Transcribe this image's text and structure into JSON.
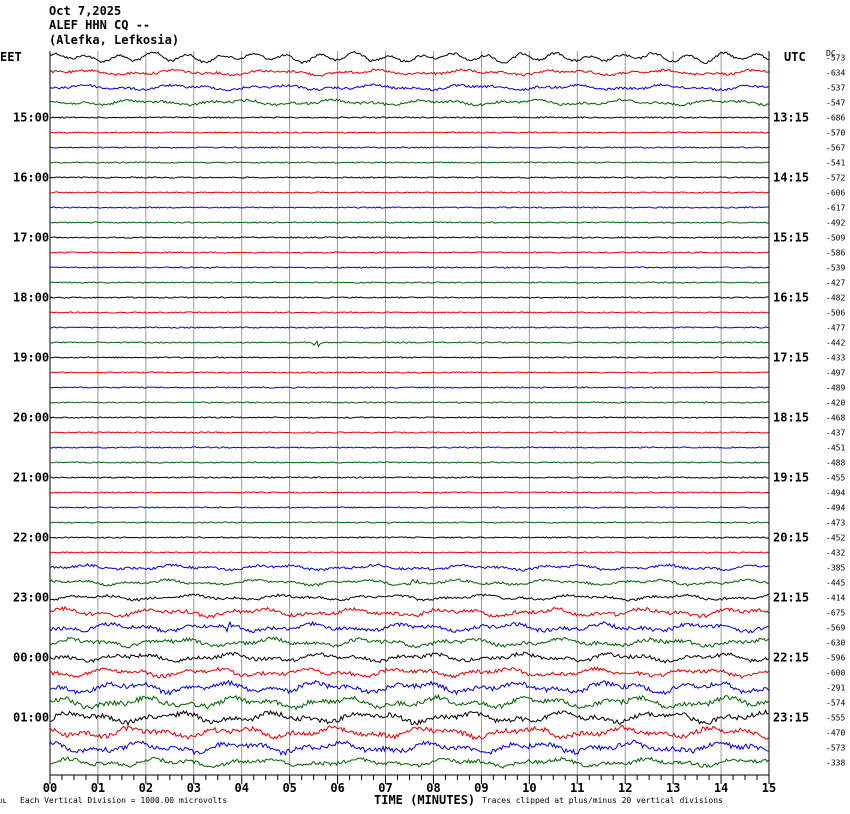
{
  "header": {
    "date": "Oct 7,2025",
    "station": "ALEF HHN CQ --",
    "location": "(Alefka, Lefkosia)"
  },
  "left_timezone": "EET",
  "right_timezone": "UTC",
  "dc_label": "DC",
  "footer": {
    "corner_mark": "ᴊʟ",
    "scale_note": "Each Vertical Division = 1000.00 microvolts",
    "clip_note": "Traces clipped at plus/minus 20 vertical divisions"
  },
  "colors": {
    "black": "#000000",
    "red": "#e00000",
    "blue": "#0000e0",
    "green": "#006400",
    "grid": "#808080"
  },
  "chart_data": {
    "type": "line",
    "xlabel": "TIME (MINUTES)",
    "xlim": [
      0,
      15
    ],
    "x_ticks": [
      "00",
      "01",
      "02",
      "03",
      "04",
      "05",
      "06",
      "07",
      "08",
      "09",
      "10",
      "11",
      "12",
      "13",
      "14",
      "15"
    ],
    "trace_colors": [
      "black",
      "red",
      "blue",
      "green"
    ],
    "left_hour_labels": [
      "15:00",
      "16:00",
      "17:00",
      "18:00",
      "19:00",
      "20:00",
      "21:00",
      "22:00",
      "23:00",
      "00:00",
      "01:00"
    ],
    "right_hour_labels": [
      "13:15",
      "14:15",
      "15:15",
      "16:15",
      "17:15",
      "18:15",
      "19:15",
      "20:15",
      "21:15",
      "22:15",
      "23:15"
    ],
    "trace_offsets": [
      -573,
      -634,
      -537,
      -547,
      -686,
      -570,
      -567,
      -541,
      -572,
      -606,
      -617,
      -492,
      -509,
      -586,
      -539,
      -427,
      -482,
      -506,
      -477,
      -442,
      -433,
      -497,
      -489,
      -420,
      -468,
      -437,
      -451,
      -488,
      -455,
      -494,
      -494,
      -473,
      -452,
      -432,
      -385,
      -445,
      -414,
      -675,
      -569,
      -630,
      -596,
      -600,
      -291,
      -574,
      -555,
      -470,
      -573,
      -338
    ],
    "trace_noise_level": [
      2,
      2,
      2,
      2,
      1,
      1,
      1,
      1,
      1,
      1,
      1,
      1,
      1,
      1,
      1,
      1,
      1,
      1,
      1,
      1,
      1,
      1,
      1,
      1,
      1,
      1,
      1,
      1,
      1,
      1,
      1,
      1,
      1,
      1,
      2,
      2,
      2,
      3,
      3,
      3,
      3,
      3,
      4,
      4,
      4,
      4,
      4,
      3
    ],
    "events": [
      {
        "trace": 19,
        "minute": 5.55,
        "amplitude": 8
      },
      {
        "trace": 35,
        "minute": 7.6,
        "amplitude": 5
      },
      {
        "trace": 38,
        "minute": 3.7,
        "amplitude": 7
      },
      {
        "trace": 37,
        "minute": 0.35,
        "amplitude": 5
      }
    ]
  }
}
